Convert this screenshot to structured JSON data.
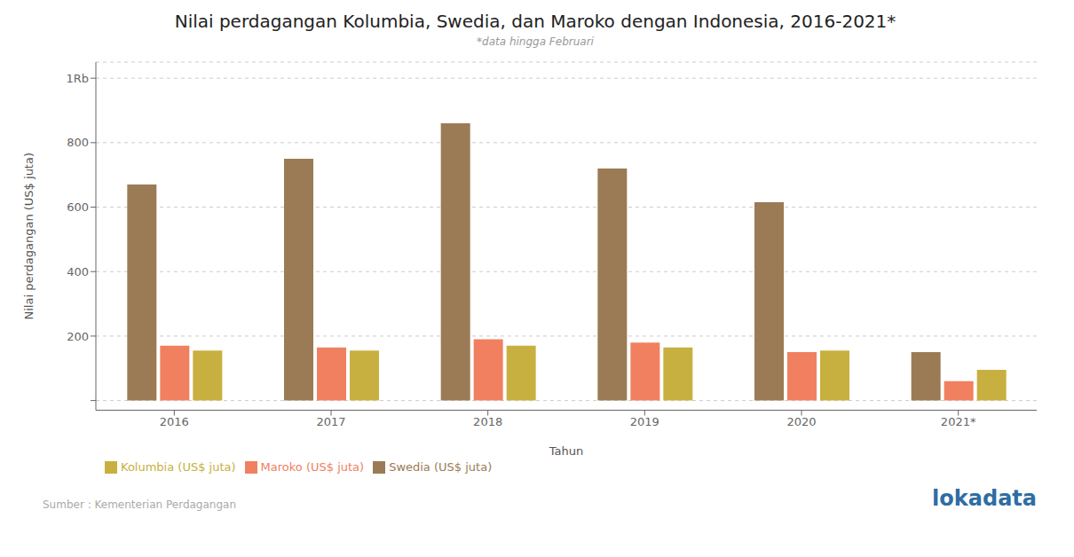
{
  "chart_data": {
    "type": "bar",
    "title": "Nilai perdagangan Kolumbia, Swedia, dan Maroko dengan Indonesia, 2016-2021*",
    "subtitle": "*data hingga Februari",
    "x_label": "Tahun",
    "y_label": "Nilai perdagangan (US$ juta)",
    "categories": [
      "2016",
      "2017",
      "2018",
      "2019",
      "2020",
      "2021*"
    ],
    "series": [
      {
        "name": "Swedia (US$ juta)",
        "color": "#9B7B55",
        "values": [
          670,
          750,
          860,
          720,
          615,
          150
        ]
      },
      {
        "name": "Maroko (US$ juta)",
        "color": "#F08060",
        "values": [
          170,
          165,
          190,
          180,
          150,
          60
        ]
      },
      {
        "name": "Kolumbia (US$ juta)",
        "color": "#C8B040",
        "values": [
          155,
          155,
          170,
          165,
          155,
          95
        ]
      }
    ],
    "ylim": [
      -30,
      1050
    ],
    "yticks": [
      {
        "value": 0,
        "label": ""
      },
      200,
      400,
      600,
      800,
      {
        "value": 1000,
        "label": "1Rb"
      }
    ],
    "grid": true,
    "legend": "bottom",
    "annotations": [
      "Sumber : Kementerian Perdagangan",
      "lokadata"
    ]
  }
}
